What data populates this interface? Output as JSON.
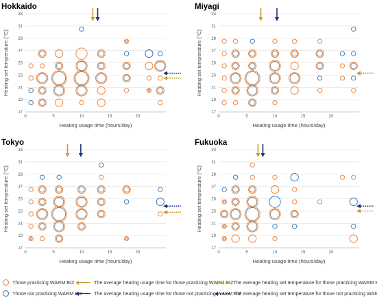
{
  "colors": {
    "orange": "#ed7d31",
    "blue": "#2e6ead",
    "gray": "#7f7f7f",
    "gold": "#c5a02c",
    "navy": "#1f2f7a"
  },
  "chart_data": [
    {
      "type": "scatter",
      "title": "Hokkaido",
      "xlabel": "Heating usage time (hours/day)",
      "ylabel": "Heating set temperature (°C)",
      "xlim": [
        0,
        25
      ],
      "ylim": [
        17,
        33
      ],
      "xticks": [
        0,
        5,
        10,
        15,
        20
      ],
      "yticks": [
        17,
        19,
        21,
        23,
        25,
        27,
        29,
        31,
        33
      ],
      "grid": "horizontal",
      "avg_time_practicing": 12,
      "avg_time_not_practicing": 12.5,
      "avg_temp_practicing": 22.5,
      "avg_temp_not_practicing": 23.3,
      "bubbles": [
        {
          "x": 1,
          "y": 24.5,
          "g": "o",
          "s": 1
        },
        {
          "x": 1,
          "y": 22.5,
          "g": "o",
          "s": 1
        },
        {
          "x": 1,
          "y": 20.5,
          "g": "b",
          "s": 1
        },
        {
          "x": 1,
          "y": 18.5,
          "g": "b",
          "s": 1
        },
        {
          "x": 3,
          "y": 26.5,
          "g": "g",
          "s": 2
        },
        {
          "x": 3,
          "y": 24.5,
          "g": "o",
          "s": 1
        },
        {
          "x": 3,
          "y": 22.5,
          "g": "g",
          "s": 3
        },
        {
          "x": 3,
          "y": 20.5,
          "g": "g",
          "s": 2
        },
        {
          "x": 3,
          "y": 18.5,
          "g": "g",
          "s": 2
        },
        {
          "x": 6,
          "y": 26.5,
          "g": "o",
          "s": 2
        },
        {
          "x": 6,
          "y": 24.5,
          "g": "g",
          "s": 2
        },
        {
          "x": 6,
          "y": 22.5,
          "g": "g",
          "s": 4
        },
        {
          "x": 6,
          "y": 20.5,
          "g": "g",
          "s": 3
        },
        {
          "x": 6,
          "y": 18.5,
          "g": "o",
          "s": 2
        },
        {
          "x": 10,
          "y": 30.5,
          "g": "b",
          "s": 1
        },
        {
          "x": 10,
          "y": 26.5,
          "g": "o",
          "s": 3
        },
        {
          "x": 10,
          "y": 24.5,
          "g": "g",
          "s": 3
        },
        {
          "x": 10,
          "y": 22.5,
          "g": "g",
          "s": 4
        },
        {
          "x": 10,
          "y": 20.5,
          "g": "g",
          "s": 3
        },
        {
          "x": 10,
          "y": 18.5,
          "g": "o",
          "s": 1
        },
        {
          "x": 13.5,
          "y": 26.5,
          "g": "g",
          "s": 2
        },
        {
          "x": 13.5,
          "y": 24.5,
          "g": "g",
          "s": 2
        },
        {
          "x": 13.5,
          "y": 22.5,
          "g": "g",
          "s": 3
        },
        {
          "x": 13.5,
          "y": 20.5,
          "g": "o",
          "s": 2
        },
        {
          "x": 13.5,
          "y": 18.5,
          "g": "o",
          "s": 2
        },
        {
          "x": 18,
          "y": 28.5,
          "g": "g",
          "s": 1
        },
        {
          "x": 18,
          "y": 26.5,
          "g": "b",
          "s": 1
        },
        {
          "x": 18,
          "y": 24.5,
          "g": "g",
          "s": 2
        },
        {
          "x": 18,
          "y": 22.5,
          "g": "g",
          "s": 2
        },
        {
          "x": 18,
          "y": 20.5,
          "g": "o",
          "s": 1
        },
        {
          "x": 22,
          "y": 26.5,
          "g": "b",
          "s": 2
        },
        {
          "x": 22,
          "y": 24.5,
          "g": "o",
          "s": 2
        },
        {
          "x": 22,
          "y": 22.5,
          "g": "o",
          "s": 1
        },
        {
          "x": 22,
          "y": 20.5,
          "g": "g",
          "s": 1
        },
        {
          "x": 24,
          "y": 26.5,
          "g": "b",
          "s": 1
        },
        {
          "x": 24,
          "y": 24.5,
          "g": "g",
          "s": 3
        },
        {
          "x": 24,
          "y": 22.5,
          "g": "o",
          "s": 1
        },
        {
          "x": 24,
          "y": 20.5,
          "g": "g",
          "s": 2
        },
        {
          "x": 24,
          "y": 18.5,
          "g": "o",
          "s": 1
        }
      ]
    },
    {
      "type": "scatter",
      "title": "Miyagi",
      "xlabel": "Heating usage time (hours/day)",
      "ylabel": "Heating set temperature (°C)",
      "xlim": [
        0,
        25
      ],
      "ylim": [
        17,
        33
      ],
      "xticks": [
        0,
        5,
        10,
        15,
        20
      ],
      "yticks": [
        17,
        19,
        21,
        23,
        25,
        27,
        29,
        31,
        33
      ],
      "grid": "horizontal",
      "avg_time_practicing": 7.5,
      "avg_time_not_practicing": 10,
      "avg_temp_practicing": 23.3,
      "avg_temp_not_practicing": 23.3,
      "bubbles": [
        {
          "x": 1,
          "y": 28.5,
          "g": "o",
          "s": 1
        },
        {
          "x": 1,
          "y": 26.5,
          "g": "o",
          "s": 1
        },
        {
          "x": 1,
          "y": 24.5,
          "g": "o",
          "s": 1
        },
        {
          "x": 1,
          "y": 22.5,
          "g": "o",
          "s": 1
        },
        {
          "x": 1,
          "y": 20.5,
          "g": "o",
          "s": 1
        },
        {
          "x": 1,
          "y": 18.5,
          "g": "o",
          "s": 1
        },
        {
          "x": 3,
          "y": 28.5,
          "g": "o",
          "s": 1
        },
        {
          "x": 3,
          "y": 26.5,
          "g": "g",
          "s": 2
        },
        {
          "x": 3,
          "y": 24.5,
          "g": "g",
          "s": 2
        },
        {
          "x": 3,
          "y": 22.5,
          "g": "g",
          "s": 3
        },
        {
          "x": 3,
          "y": 20.5,
          "g": "g",
          "s": 2
        },
        {
          "x": 3,
          "y": 18.5,
          "g": "o",
          "s": 1
        },
        {
          "x": 6,
          "y": 28.5,
          "g": "b",
          "s": 1
        },
        {
          "x": 6,
          "y": 26.5,
          "g": "g",
          "s": 2
        },
        {
          "x": 6,
          "y": 24.5,
          "g": "g",
          "s": 2
        },
        {
          "x": 6,
          "y": 22.5,
          "g": "g",
          "s": 4
        },
        {
          "x": 6,
          "y": 20.5,
          "g": "g",
          "s": 3
        },
        {
          "x": 6,
          "y": 18.5,
          "g": "g",
          "s": 2
        },
        {
          "x": 10,
          "y": 28.5,
          "g": "o",
          "s": 1
        },
        {
          "x": 10,
          "y": 26.5,
          "g": "g",
          "s": 2
        },
        {
          "x": 10,
          "y": 24.5,
          "g": "g",
          "s": 3
        },
        {
          "x": 10,
          "y": 22.5,
          "g": "g",
          "s": 3
        },
        {
          "x": 10,
          "y": 20.5,
          "g": "g",
          "s": 2
        },
        {
          "x": 10,
          "y": 18.5,
          "g": "o",
          "s": 1
        },
        {
          "x": 13.5,
          "y": 28.5,
          "g": "o",
          "s": 1
        },
        {
          "x": 13.5,
          "y": 26.5,
          "g": "g",
          "s": 2
        },
        {
          "x": 13.5,
          "y": 24.5,
          "g": "o",
          "s": 2
        },
        {
          "x": 13.5,
          "y": 22.5,
          "g": "g",
          "s": 3
        },
        {
          "x": 13.5,
          "y": 20.5,
          "g": "o",
          "s": 2
        },
        {
          "x": 18,
          "y": 28.5,
          "g": "o",
          "s": 1
        },
        {
          "x": 18,
          "y": 26.5,
          "g": "g",
          "s": 2
        },
        {
          "x": 18,
          "y": 24.5,
          "g": "g",
          "s": 2
        },
        {
          "x": 18,
          "y": 22.5,
          "g": "b",
          "s": 1
        },
        {
          "x": 18,
          "y": 20.5,
          "g": "o",
          "s": 1
        },
        {
          "x": 22,
          "y": 26.5,
          "g": "b",
          "s": 1
        },
        {
          "x": 22,
          "y": 24.5,
          "g": "o",
          "s": 1
        },
        {
          "x": 22,
          "y": 22.5,
          "g": "o",
          "s": 1
        },
        {
          "x": 24,
          "y": 30.5,
          "g": "b",
          "s": 1
        },
        {
          "x": 24,
          "y": 26.5,
          "g": "b",
          "s": 1
        },
        {
          "x": 24,
          "y": 24.5,
          "g": "g",
          "s": 2
        },
        {
          "x": 24,
          "y": 22.5,
          "g": "b",
          "s": 1
        },
        {
          "x": 24,
          "y": 20.5,
          "g": "o",
          "s": 1
        }
      ]
    },
    {
      "type": "scatter",
      "title": "Tokyo",
      "xlabel": "Heating usage time (hours/day)",
      "ylabel": "Heating set temperature (°C)",
      "xlim": [
        0,
        25
      ],
      "ylim": [
        17,
        33
      ],
      "xticks": [
        0,
        5,
        10,
        15,
        20
      ],
      "yticks": [
        17,
        19,
        21,
        23,
        25,
        27,
        29,
        31,
        33
      ],
      "grid": "horizontal",
      "avg_time_practicing": 7.5,
      "avg_time_not_practicing": 9.5,
      "avg_temp_practicing": 22.8,
      "avg_temp_not_practicing": 23.8,
      "bubbles": [
        {
          "x": 1,
          "y": 26.5,
          "g": "o",
          "s": 1
        },
        {
          "x": 1,
          "y": 24.5,
          "g": "o",
          "s": 1
        },
        {
          "x": 1,
          "y": 22.5,
          "g": "o",
          "s": 1
        },
        {
          "x": 1,
          "y": 20.5,
          "g": "o",
          "s": 1
        },
        {
          "x": 1,
          "y": 18.5,
          "g": "g",
          "s": 1
        },
        {
          "x": 3,
          "y": 28.5,
          "g": "b",
          "s": 1
        },
        {
          "x": 3,
          "y": 26.5,
          "g": "g",
          "s": 2
        },
        {
          "x": 3,
          "y": 24.5,
          "g": "g",
          "s": 2
        },
        {
          "x": 3,
          "y": 22.5,
          "g": "g",
          "s": 3
        },
        {
          "x": 3,
          "y": 20.5,
          "g": "g",
          "s": 2
        },
        {
          "x": 3,
          "y": 18.5,
          "g": "o",
          "s": 1
        },
        {
          "x": 6,
          "y": 28.5,
          "g": "b",
          "s": 1
        },
        {
          "x": 6,
          "y": 26.5,
          "g": "g",
          "s": 2
        },
        {
          "x": 6,
          "y": 24.5,
          "g": "g",
          "s": 3
        },
        {
          "x": 6,
          "y": 22.5,
          "g": "g",
          "s": 4
        },
        {
          "x": 6,
          "y": 20.5,
          "g": "g",
          "s": 3
        },
        {
          "x": 6,
          "y": 18.5,
          "g": "g",
          "s": 2
        },
        {
          "x": 10,
          "y": 26.5,
          "g": "g",
          "s": 2
        },
        {
          "x": 10,
          "y": 24.5,
          "g": "g",
          "s": 3
        },
        {
          "x": 10,
          "y": 22.5,
          "g": "g",
          "s": 3
        },
        {
          "x": 10,
          "y": 20.5,
          "g": "g",
          "s": 2
        },
        {
          "x": 13.5,
          "y": 30.5,
          "g": "b",
          "s": 1
        },
        {
          "x": 13.5,
          "y": 28.5,
          "g": "o",
          "s": 1
        },
        {
          "x": 13.5,
          "y": 26.5,
          "g": "g",
          "s": 2
        },
        {
          "x": 13.5,
          "y": 24.5,
          "g": "g",
          "s": 2
        },
        {
          "x": 13.5,
          "y": 22.5,
          "g": "g",
          "s": 2
        },
        {
          "x": 18,
          "y": 26.5,
          "g": "g",
          "s": 2
        },
        {
          "x": 18,
          "y": 24.5,
          "g": "b",
          "s": 1
        },
        {
          "x": 18,
          "y": 18.5,
          "g": "g",
          "s": 1
        },
        {
          "x": 24,
          "y": 26.5,
          "g": "b",
          "s": 1
        },
        {
          "x": 24,
          "y": 24.5,
          "g": "b",
          "s": 2
        },
        {
          "x": 24,
          "y": 22.5,
          "g": "o",
          "s": 1
        }
      ]
    },
    {
      "type": "scatter",
      "title": "Fukuoka",
      "xlabel": "Heating usage time (hours/day)",
      "ylabel": "Heating set temperature (°C)",
      "xlim": [
        0,
        25
      ],
      "ylim": [
        17,
        33
      ],
      "xticks": [
        0,
        5,
        10,
        15,
        20
      ],
      "yticks": [
        17,
        19,
        21,
        23,
        25,
        27,
        29,
        31,
        33
      ],
      "grid": "horizontal",
      "avg_time_practicing": 7,
      "avg_time_not_practicing": 7.5,
      "avg_temp_practicing": 23,
      "avg_temp_not_practicing": 23.8,
      "bubbles": [
        {
          "x": 1,
          "y": 26.5,
          "g": "b",
          "s": 1
        },
        {
          "x": 1,
          "y": 24.5,
          "g": "g",
          "s": 1
        },
        {
          "x": 1,
          "y": 22.5,
          "g": "g",
          "s": 2
        },
        {
          "x": 1,
          "y": 20.5,
          "g": "g",
          "s": 1
        },
        {
          "x": 1,
          "y": 18.5,
          "g": "g",
          "s": 1
        },
        {
          "x": 3,
          "y": 28.5,
          "g": "b",
          "s": 1
        },
        {
          "x": 3,
          "y": 26.5,
          "g": "g",
          "s": 2
        },
        {
          "x": 3,
          "y": 24.5,
          "g": "g",
          "s": 2
        },
        {
          "x": 3,
          "y": 22.5,
          "g": "g",
          "s": 3
        },
        {
          "x": 3,
          "y": 20.5,
          "g": "g",
          "s": 2
        },
        {
          "x": 3,
          "y": 18.5,
          "g": "o",
          "s": 2
        },
        {
          "x": 6,
          "y": 30.5,
          "g": "o",
          "s": 1
        },
        {
          "x": 6,
          "y": 28.5,
          "g": "o",
          "s": 1
        },
        {
          "x": 6,
          "y": 26.5,
          "g": "g",
          "s": 2
        },
        {
          "x": 6,
          "y": 24.5,
          "g": "g",
          "s": 3
        },
        {
          "x": 6,
          "y": 22.5,
          "g": "g",
          "s": 4
        },
        {
          "x": 6,
          "y": 20.5,
          "g": "g",
          "s": 3
        },
        {
          "x": 6,
          "y": 18.5,
          "g": "o",
          "s": 2
        },
        {
          "x": 10,
          "y": 28.5,
          "g": "o",
          "s": 1
        },
        {
          "x": 10,
          "y": 26.5,
          "g": "o",
          "s": 2
        },
        {
          "x": 10,
          "y": 24.5,
          "g": "b",
          "s": 3
        },
        {
          "x": 10,
          "y": 22.5,
          "g": "g",
          "s": 3
        },
        {
          "x": 10,
          "y": 20.5,
          "g": "b",
          "s": 1
        },
        {
          "x": 10,
          "y": 18.5,
          "g": "o",
          "s": 1
        },
        {
          "x": 13.5,
          "y": 28.5,
          "g": "b",
          "s": 2
        },
        {
          "x": 13.5,
          "y": 26.5,
          "g": "o",
          "s": 1
        },
        {
          "x": 13.5,
          "y": 24.5,
          "g": "o",
          "s": 1
        },
        {
          "x": 13.5,
          "y": 22.5,
          "g": "g",
          "s": 2
        },
        {
          "x": 13.5,
          "y": 20.5,
          "g": "b",
          "s": 1
        },
        {
          "x": 18,
          "y": 24.5,
          "g": "o",
          "s": 1
        },
        {
          "x": 22,
          "y": 28.5,
          "g": "o",
          "s": 1
        },
        {
          "x": 24,
          "y": 28.5,
          "g": "o",
          "s": 1
        },
        {
          "x": 24,
          "y": 24.5,
          "g": "b",
          "s": 2
        },
        {
          "x": 24,
          "y": 20.5,
          "g": "b",
          "s": 1
        },
        {
          "x": 24,
          "y": 18.5,
          "g": "o",
          "s": 2
        }
      ]
    }
  ],
  "legend": {
    "practicing": "Those practicing WARM BIZ",
    "not_practicing": "Those not practicing WARM BIZ",
    "avg_time_practicing": "The average heating usage time for those practicing WARM BIZ",
    "avg_time_not_practicing": "The average heating usage time for those not practicing WARM BIZ",
    "avg_temp_practicing": "The average heating set temperature for those practicing WARM BIZ",
    "avg_temp_not_practicing": "The average heating set temperature for those not practicing WARM BIZ"
  }
}
